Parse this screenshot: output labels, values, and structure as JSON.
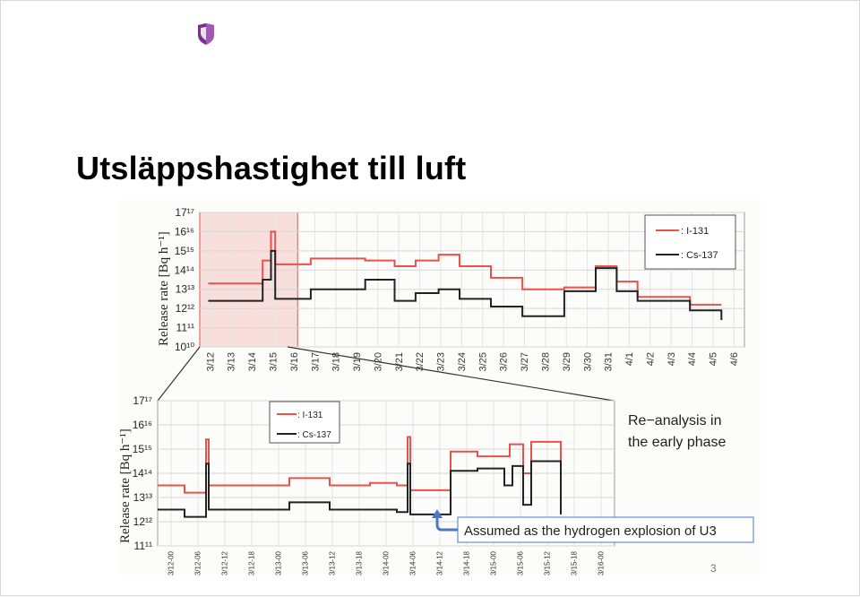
{
  "slide": {
    "title": "Utsläppshastighet till luft",
    "page_number": "3"
  },
  "colors": {
    "i131": "#e8524d",
    "cs137": "#222222",
    "highlight": "#d9574f",
    "callout_arrow": "#4a79c4",
    "grid": "#d6d6d6"
  },
  "chart_data": [
    {
      "type": "line",
      "chart": "overview",
      "ylabel": "Release rate [Bq h⁻¹]",
      "yscale": "log",
      "ylim": [
        10,
        17
      ],
      "y_ticks": [
        "10",
        "11",
        "12",
        "13",
        "14",
        "15",
        "16",
        "17"
      ],
      "x_categories": [
        "3/12",
        "3/13",
        "3/14",
        "3/15",
        "3/16",
        "3/17",
        "3/18",
        "3/19",
        "3/20",
        "3/21",
        "3/22",
        "3/23",
        "3/24",
        "3/25",
        "3/26",
        "3/27",
        "3/28",
        "3/29",
        "3/30",
        "3/31",
        "4/1",
        "4/2",
        "4/3",
        "4/4",
        "4/5",
        "4/6"
      ],
      "grid": true,
      "legend_position": "top-right",
      "highlight_range": [
        "3/12",
        "3/16"
      ],
      "series": [
        {
          "name": ": I-131",
          "color": "#e8524d",
          "steps": [
            [
              0.4,
              13.3
            ],
            [
              3.0,
              14.5
            ],
            [
              3.4,
              16.0
            ],
            [
              3.6,
              14.3
            ],
            [
              4.3,
              14.3
            ],
            [
              5.3,
              14.6
            ],
            [
              7.9,
              14.5
            ],
            [
              9.3,
              14.2
            ],
            [
              10.3,
              14.5
            ],
            [
              11.4,
              14.8
            ],
            [
              12.4,
              14.2
            ],
            [
              13.9,
              13.6
            ],
            [
              15.4,
              13.0
            ],
            [
              17.4,
              13.1
            ],
            [
              18.9,
              14.2
            ],
            [
              19.9,
              13.4
            ],
            [
              20.9,
              12.6
            ],
            [
              23.4,
              12.2
            ],
            [
              24.9,
              12.2
            ]
          ]
        },
        {
          "name": ": Cs-137",
          "color": "#222222",
          "steps": [
            [
              0.4,
              12.4
            ],
            [
              3.0,
              13.5
            ],
            [
              3.4,
              15.0
            ],
            [
              3.6,
              12.5
            ],
            [
              4.3,
              12.5
            ],
            [
              5.3,
              13.0
            ],
            [
              7.9,
              13.5
            ],
            [
              9.3,
              12.4
            ],
            [
              10.3,
              12.8
            ],
            [
              11.4,
              13.0
            ],
            [
              12.4,
              12.5
            ],
            [
              13.9,
              12.1
            ],
            [
              15.4,
              11.6
            ],
            [
              17.4,
              12.9
            ],
            [
              18.9,
              14.1
            ],
            [
              19.9,
              12.9
            ],
            [
              20.9,
              12.4
            ],
            [
              23.4,
              11.9
            ],
            [
              24.9,
              11.4
            ]
          ]
        }
      ]
    },
    {
      "type": "line",
      "chart": "detail",
      "ylabel": "Release rate [Bq h⁻¹]",
      "yscale": "log",
      "ylim": [
        11,
        17
      ],
      "y_ticks": [
        "11",
        "12",
        "13",
        "14",
        "15",
        "16",
        "17"
      ],
      "x_categories": [
        "3/12-00",
        "3/12-06",
        "3/12-12",
        "3/12-18",
        "3/13-00",
        "3/13-06",
        "3/13-12",
        "3/13-18",
        "3/14-00",
        "3/14-06",
        "3/14-12",
        "3/14-18",
        "3/15-00",
        "3/15-06",
        "3/15-12",
        "3/15-18",
        "3/16-00"
      ],
      "grid": true,
      "legend_position": "top-center",
      "series": [
        {
          "name": ": I-131",
          "color": "#e8524d",
          "steps": [
            [
              0,
              13.5
            ],
            [
              1,
              13.2
            ],
            [
              1.8,
              15.4
            ],
            [
              1.9,
              13.5
            ],
            [
              4.9,
              13.8
            ],
            [
              6.4,
              13.5
            ],
            [
              7.9,
              13.6
            ],
            [
              8.9,
              13.5
            ],
            [
              9.3,
              15.5
            ],
            [
              9.4,
              13.3
            ],
            [
              10.9,
              14.9
            ],
            [
              11.9,
              14.7
            ],
            [
              13.1,
              15.2
            ],
            [
              13.6,
              14.0
            ],
            [
              13.9,
              15.3
            ],
            [
              15.0,
              14.2
            ]
          ]
        },
        {
          "name": ": Cs-137",
          "color": "#222222",
          "steps": [
            [
              0,
              12.5
            ],
            [
              1,
              12.2
            ],
            [
              1.8,
              14.4
            ],
            [
              1.9,
              12.5
            ],
            [
              4.9,
              12.8
            ],
            [
              6.4,
              12.5
            ],
            [
              7.9,
              12.5
            ],
            [
              8.9,
              12.4
            ],
            [
              9.3,
              14.4
            ],
            [
              9.4,
              12.3
            ],
            [
              10.9,
              14.1
            ],
            [
              11.9,
              14.2
            ],
            [
              12.9,
              13.5
            ],
            [
              13.2,
              14.3
            ],
            [
              13.6,
              12.7
            ],
            [
              13.9,
              14.5
            ],
            [
              15.0,
              12.3
            ]
          ]
        }
      ],
      "annotations": [
        {
          "text": "Re−analysis in",
          "type": "heading"
        },
        {
          "text": "the early phase",
          "type": "heading"
        },
        {
          "text": "Assumed as the hydrogen explosion of U3",
          "type": "callout"
        }
      ]
    }
  ]
}
